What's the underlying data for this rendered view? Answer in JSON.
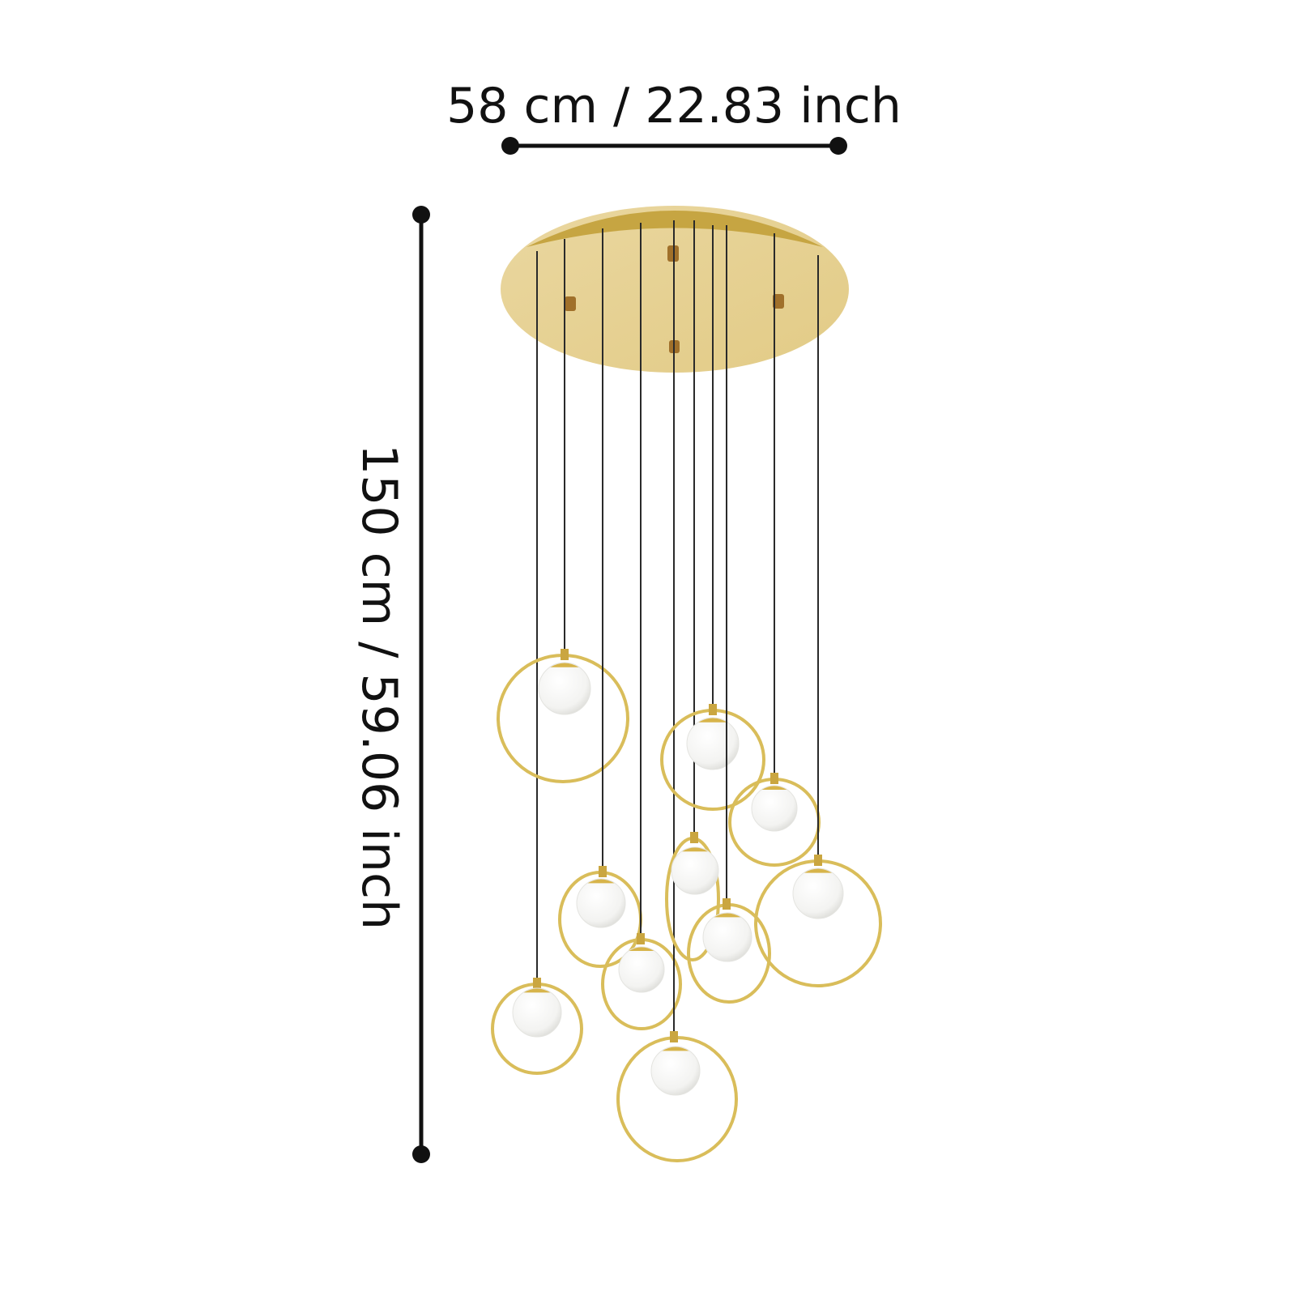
{
  "dimensions": {
    "width_label": "58 cm / 22.83 inch",
    "height_label": "150 cm / 59.06 inch"
  },
  "colors": {
    "line": "#111111",
    "canopy": "#e8d49a",
    "canopy_rim": "#c9a740",
    "ring": "#d9bd5a",
    "globe": "#ffffff",
    "cord": "#2a2a2a"
  },
  "product": {
    "pendant_count": 10
  }
}
